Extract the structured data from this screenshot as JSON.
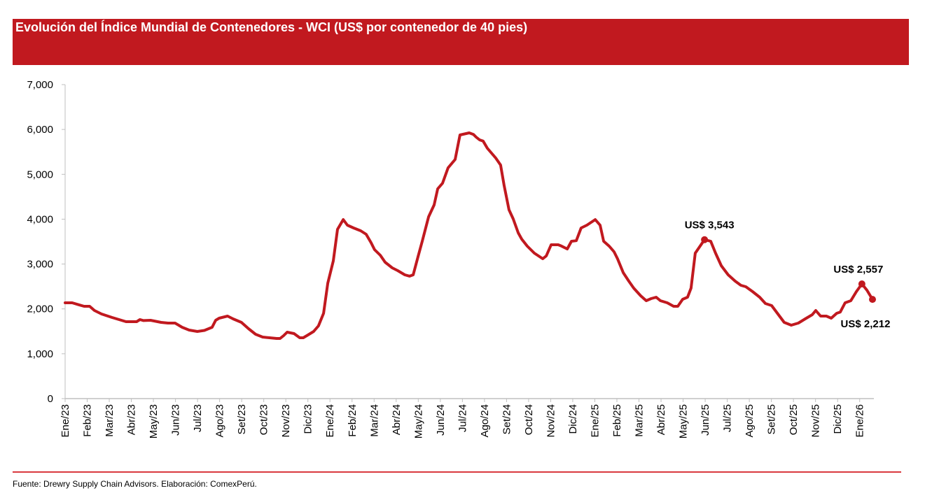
{
  "chart_data": {
    "type": "line",
    "title": "Evolución del Índice Mundial de Contenedores - WCI (US$ por contenedor de 40 pies)",
    "xlabel": "",
    "ylabel": "",
    "ylim": [
      0,
      7000
    ],
    "yticks": [
      0,
      1000,
      2000,
      3000,
      4000,
      5000,
      6000,
      7000
    ],
    "ytick_labels": [
      "0",
      "1,000",
      "2,000",
      "3,000",
      "4,000",
      "5,000",
      "6,000",
      "7,000"
    ],
    "x_unit": "months since Ene/23",
    "xtick_labels": [
      "Ene/23",
      "Feb/23",
      "Mar/23",
      "Abr/23",
      "May/23",
      "Jun/23",
      "Jul/23",
      "Ago/23",
      "Set/23",
      "Oct/23",
      "Nov/23",
      "Dic/23",
      "Ene/24",
      "Feb/24",
      "Mar/24",
      "Abr/24",
      "May/24",
      "Jun/24",
      "Jul/24",
      "Ago/24",
      "Set/24",
      "Oct/24",
      "Nov/24",
      "Dic/24",
      "Ene/25",
      "Feb/25",
      "Mar/25",
      "Abr/25",
      "May/25",
      "Jun/25",
      "Jul/25",
      "Ago/25",
      "Set/25",
      "Oct/25",
      "Nov/25",
      "Dic/25",
      "Ene/26"
    ],
    "grid": false,
    "series": [
      {
        "name": "WCI",
        "color": "#c1191f",
        "x": [
          0,
          0.32,
          0.63,
          0.86,
          1.11,
          1.33,
          1.65,
          2.13,
          2.76,
          3.24,
          3.39,
          3.55,
          3.87,
          4.35,
          4.66,
          4.98,
          5.3,
          5.62,
          5.99,
          6.31,
          6.66,
          6.82,
          6.98,
          7.36,
          7.61,
          7.99,
          8.31,
          8.63,
          8.95,
          9.26,
          9.58,
          9.74,
          9.9,
          10.06,
          10.37,
          10.63,
          10.79,
          11.01,
          11.26,
          11.48,
          11.71,
          11.9,
          12.15,
          12.34,
          12.6,
          12.79,
          13.07,
          13.39,
          13.64,
          13.86,
          14.02,
          14.28,
          14.5,
          14.82,
          15.07,
          15.39,
          15.61,
          15.77,
          15.99,
          16.18,
          16.47,
          16.72,
          16.88,
          17.1,
          17.35,
          17.67,
          17.89,
          18.31,
          18.5,
          18.62,
          18.78,
          18.94,
          19.13,
          19.51,
          19.73,
          19.89,
          20.11,
          20.3,
          20.53,
          20.69,
          20.94,
          21.26,
          21.64,
          21.8,
          22.02,
          22.34,
          22.49,
          22.75,
          22.94,
          23.16,
          23.38,
          23.64,
          24.02,
          24.24,
          24.4,
          24.65,
          24.87,
          25.03,
          25.29,
          25.54,
          25.76,
          26.08,
          26.33,
          26.55,
          26.78,
          26.97,
          27.28,
          27.57,
          27.76,
          27.98,
          28.2,
          28.36,
          28.55,
          28.97,
          29.25,
          29.47,
          29.73,
          30.04,
          30.36,
          30.62,
          30.84,
          31.15,
          31.47,
          31.73,
          32.01,
          32.27,
          32.58,
          32.9,
          33.22,
          33.53,
          33.85,
          34.01,
          34.23,
          34.49,
          34.71,
          34.96,
          35.12,
          35.34,
          35.6,
          35.85,
          36.1,
          36.33,
          36.58
        ],
        "values": [
          2136,
          2136,
          2090,
          2058,
          2058,
          1964,
          1886,
          1808,
          1715,
          1715,
          1761,
          1740,
          1746,
          1700,
          1684,
          1684,
          1590,
          1528,
          1496,
          1520,
          1590,
          1746,
          1793,
          1840,
          1777,
          1700,
          1559,
          1434,
          1372,
          1356,
          1341,
          1341,
          1403,
          1481,
          1450,
          1356,
          1356,
          1420,
          1497,
          1621,
          1902,
          2572,
          3071,
          3773,
          3991,
          3866,
          3804,
          3742,
          3664,
          3477,
          3321,
          3196,
          3040,
          2915,
          2853,
          2759,
          2730,
          2760,
          3165,
          3508,
          4053,
          4318,
          4677,
          4802,
          5145,
          5332,
          5878,
          5924,
          5890,
          5830,
          5768,
          5740,
          5581,
          5363,
          5207,
          4755,
          4209,
          4006,
          3695,
          3555,
          3399,
          3243,
          3118,
          3180,
          3430,
          3430,
          3400,
          3336,
          3508,
          3520,
          3804,
          3866,
          3991,
          3866,
          3508,
          3399,
          3274,
          3118,
          2806,
          2619,
          2463,
          2292,
          2183,
          2230,
          2261,
          2183,
          2136,
          2058,
          2058,
          2214,
          2261,
          2463,
          3243,
          3543,
          3508,
          3243,
          2962,
          2759,
          2619,
          2525,
          2494,
          2385,
          2261,
          2120,
          2074,
          1902,
          1700,
          1637,
          1684,
          1777,
          1871,
          1964,
          1840,
          1840,
          1793,
          1902,
          1930,
          2136,
          2183,
          2385,
          2557,
          2416,
          2212
        ]
      }
    ],
    "annotations": [
      {
        "label": "US$ 3,543",
        "x": 28.97,
        "value": 3543
      },
      {
        "label": "US$ 2,557",
        "x": 36.1,
        "value": 2557
      },
      {
        "label": "US$ 2,212",
        "x": 36.58,
        "value": 2212
      }
    ]
  },
  "source": "Fuente: Drewry Supply Chain Advisors. Elaboración: ComexPerú."
}
